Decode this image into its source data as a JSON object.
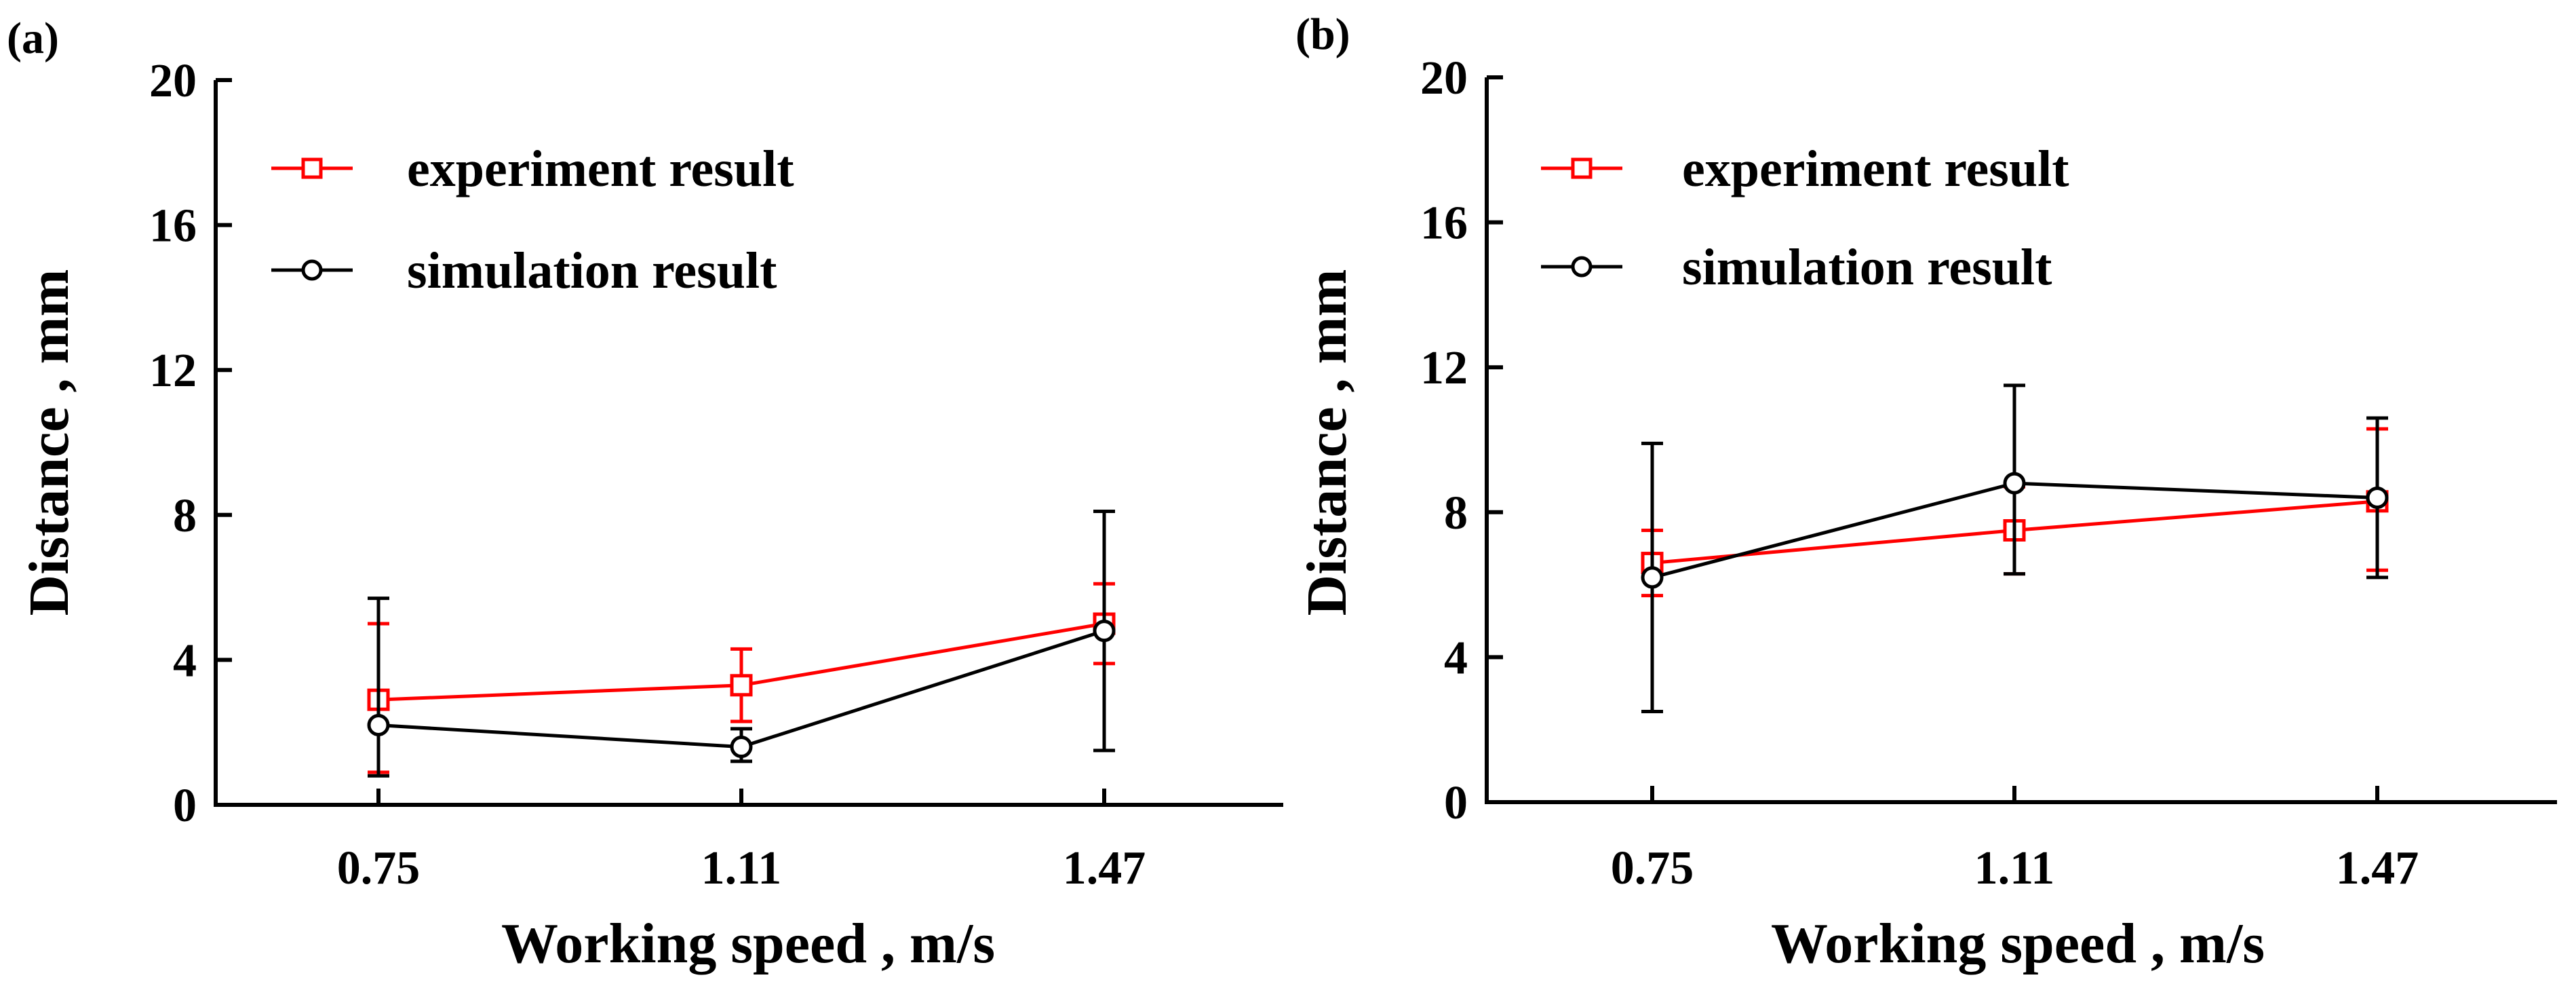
{
  "colors": {
    "experiment": "#ff0000",
    "simulation": "#000000"
  },
  "chart_data": [
    {
      "type": "line",
      "panel_label": "(a)",
      "xlabel": "Working speed , m/s",
      "ylabel": "Distance , mm",
      "categories": [
        "0.75",
        "1.11",
        "1.47"
      ],
      "ylim": [
        0,
        20
      ],
      "yticks": [
        "0",
        "4",
        "8",
        "12",
        "16",
        "20"
      ],
      "legend_position": "top-left",
      "series": [
        {
          "name": "experiment result",
          "marker": "square",
          "color": "#ff0000",
          "values": [
            2.9,
            3.3,
            5.0
          ],
          "err_low": [
            0.9,
            2.3,
            3.9
          ],
          "err_high": [
            5.0,
            4.3,
            6.1
          ]
        },
        {
          "name": "simulation result",
          "marker": "circle",
          "color": "#000000",
          "values": [
            2.2,
            1.6,
            4.8
          ],
          "err_low": [
            0.8,
            1.2,
            1.5
          ],
          "err_high": [
            5.7,
            2.1,
            8.1
          ]
        }
      ]
    },
    {
      "type": "line",
      "panel_label": "(b)",
      "xlabel": "Working speed , m/s",
      "ylabel": "Distance , mm",
      "categories": [
        "0.75",
        "1.11",
        "1.47"
      ],
      "ylim": [
        0,
        20
      ],
      "yticks": [
        "0",
        "4",
        "8",
        "12",
        "16",
        "20"
      ],
      "legend_position": "top-left",
      "series": [
        {
          "name": "experiment result",
          "marker": "square",
          "color": "#ff0000",
          "values": [
            6.6,
            7.5,
            8.3
          ],
          "err_low": [
            5.7,
            6.3,
            6.4
          ],
          "err_high": [
            7.5,
            8.7,
            10.3
          ]
        },
        {
          "name": "simulation result",
          "marker": "circle",
          "color": "#000000",
          "values": [
            6.2,
            8.8,
            8.4
          ],
          "err_low": [
            2.5,
            6.3,
            6.2
          ],
          "err_high": [
            9.9,
            11.5,
            10.6
          ]
        }
      ]
    }
  ]
}
